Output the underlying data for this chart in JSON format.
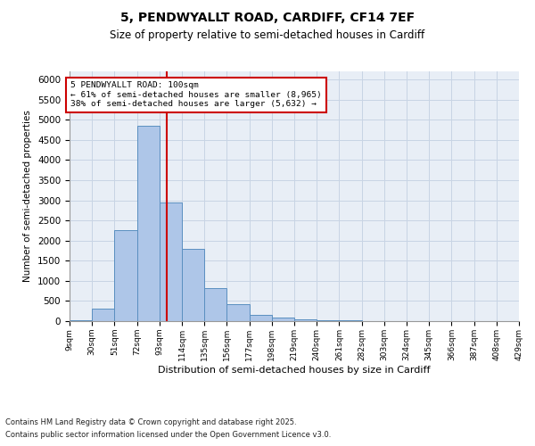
{
  "title1": "5, PENDWYALLT ROAD, CARDIFF, CF14 7EF",
  "title2": "Size of property relative to semi-detached houses in Cardiff",
  "xlabel": "Distribution of semi-detached houses by size in Cardiff",
  "ylabel": "Number of semi-detached properties",
  "footnote1": "Contains HM Land Registry data © Crown copyright and database right 2025.",
  "footnote2": "Contains public sector information licensed under the Open Government Licence v3.0.",
  "annotation_title": "5 PENDWYALLT ROAD: 100sqm",
  "annotation_line1": "← 61% of semi-detached houses are smaller (8,965)",
  "annotation_line2": "38% of semi-detached houses are larger (5,632) →",
  "property_size": 100,
  "bar_edges": [
    9,
    30,
    51,
    72,
    93,
    114,
    135,
    156,
    177,
    198,
    219,
    240,
    261,
    282,
    303,
    324,
    345,
    366,
    387,
    408,
    429
  ],
  "bar_heights": [
    20,
    310,
    2250,
    4850,
    2950,
    1800,
    820,
    430,
    150,
    95,
    50,
    25,
    12,
    8,
    5,
    4,
    3,
    2,
    1,
    1
  ],
  "bar_color": "#aec6e8",
  "bar_edge_color": "#5a8fc0",
  "grid_color": "#c8d4e4",
  "bg_color": "#e8eef6",
  "vline_color": "#cc0000",
  "box_color": "#cc0000",
  "ylim": [
    0,
    6200
  ],
  "yticks": [
    0,
    500,
    1000,
    1500,
    2000,
    2500,
    3000,
    3500,
    4000,
    4500,
    5000,
    5500,
    6000
  ]
}
